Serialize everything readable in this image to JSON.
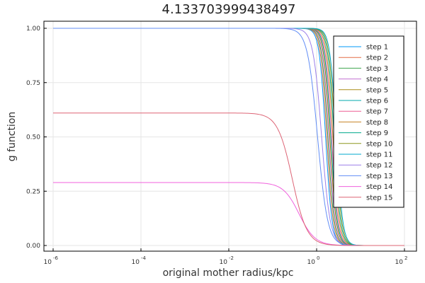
{
  "chart_data": {
    "type": "line",
    "title": "4.133703999438497",
    "xlabel": "original mother radius/kpc",
    "ylabel": "g function",
    "xscale": "log10",
    "xlim": [
      1e-06,
      100
    ],
    "ylim": [
      0,
      1
    ],
    "x_ticks": [
      {
        "base": "10",
        "exp": "-6",
        "value": 1e-06
      },
      {
        "base": "10",
        "exp": "-4",
        "value": 0.0001
      },
      {
        "base": "10",
        "exp": "-2",
        "value": 0.01
      },
      {
        "base": "10",
        "exp": "0",
        "value": 1
      },
      {
        "base": "10",
        "exp": "2",
        "value": 100
      }
    ],
    "y_ticks": [
      "0.00",
      "0.25",
      "0.50",
      "0.75",
      "1.00"
    ],
    "y_tick_values": [
      0,
      0.25,
      0.5,
      0.75,
      1
    ],
    "grid": true,
    "legend_position": "top-right",
    "series": [
      {
        "name": "step 1",
        "color": "#009AFA",
        "plateau": 1.0,
        "x_half": 1.6,
        "steep": 6.0
      },
      {
        "name": "step 2",
        "color": "#E36F47",
        "plateau": 1.0,
        "x_half": 1.7,
        "steep": 6.0
      },
      {
        "name": "step 3",
        "color": "#3EA44E",
        "plateau": 1.0,
        "x_half": 1.8,
        "steep": 6.0
      },
      {
        "name": "step 4",
        "color": "#C371D2",
        "plateau": 1.0,
        "x_half": 1.9,
        "steep": 6.0
      },
      {
        "name": "step 5",
        "color": "#AC8E18",
        "plateau": 1.0,
        "x_half": 2.0,
        "steep": 6.0
      },
      {
        "name": "step 6",
        "color": "#00AAAE",
        "plateau": 1.0,
        "x_half": 2.1,
        "steep": 6.0
      },
      {
        "name": "step 7",
        "color": "#ED5E93",
        "plateau": 1.0,
        "x_half": 2.2,
        "steep": 6.0
      },
      {
        "name": "step 8",
        "color": "#C68225",
        "plateau": 1.0,
        "x_half": 2.35,
        "steep": 6.0
      },
      {
        "name": "step 9",
        "color": "#00A98D",
        "plateau": 1.0,
        "x_half": 2.5,
        "steep": 6.0
      },
      {
        "name": "step 10",
        "color": "#8E971E",
        "plateau": 1.0,
        "x_half": 2.65,
        "steep": 6.0
      },
      {
        "name": "step 11",
        "color": "#00A9CD",
        "plateau": 1.0,
        "x_half": 2.8,
        "steep": 6.0
      },
      {
        "name": "step 12",
        "color": "#9B7FE9",
        "plateau": 1.0,
        "x_half": 1.3,
        "steep": 4.5
      },
      {
        "name": "step 13",
        "color": "#618DF6",
        "plateau": 1.0,
        "x_half": 1.05,
        "steep": 3.8
      },
      {
        "name": "step 14",
        "color": "#F061DD",
        "plateau": 0.29,
        "x_half": 0.4,
        "steep": 2.4
      },
      {
        "name": "step 15",
        "color": "#DD6475",
        "plateau": 0.61,
        "x_half": 0.28,
        "steep": 2.6
      }
    ]
  }
}
